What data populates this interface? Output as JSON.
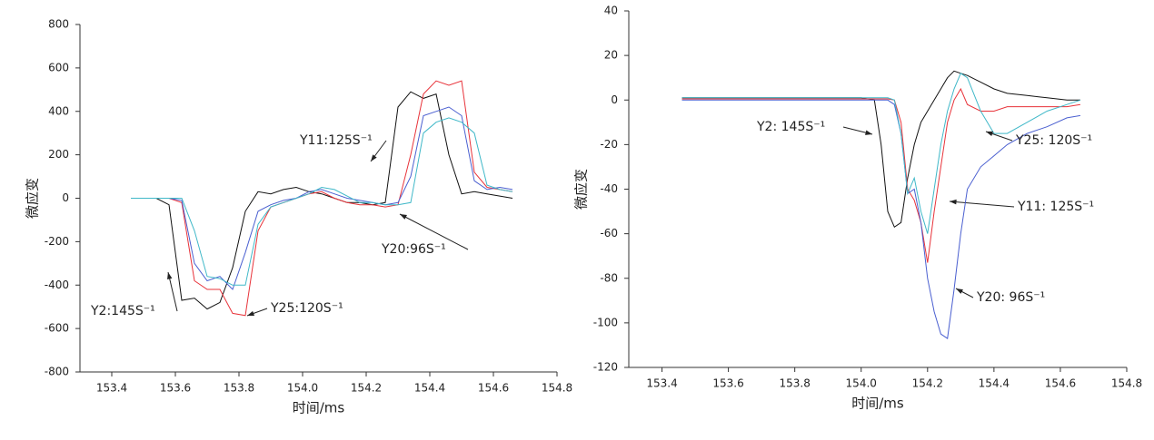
{
  "chart_data": [
    {
      "type": "line",
      "x_label": "时间/ms",
      "y_label": "微应变",
      "xlim": [
        153.3,
        154.8
      ],
      "xticks": [
        153.4,
        153.6,
        153.8,
        {
          "value": 154,
          "label": "154.0"
        },
        154.2,
        154.4,
        154.6,
        154.8
      ],
      "ylim": [
        -800,
        800
      ],
      "yticks": [
        -800,
        -600,
        -400,
        -200,
        0,
        200,
        400,
        600,
        800
      ],
      "x": [
        153.46,
        153.5,
        153.54,
        153.58,
        153.62,
        153.66,
        153.7,
        153.74,
        153.78,
        153.82,
        153.86,
        153.9,
        153.94,
        153.98,
        154.02,
        154.06,
        154.1,
        154.14,
        154.18,
        154.22,
        154.26,
        154.3,
        154.34,
        154.38,
        154.42,
        154.46,
        154.5,
        154.54,
        154.58,
        154.62,
        154.66
      ],
      "series": [
        {
          "name": "Y2:145S⁻¹",
          "color": "#111111",
          "values": [
            0,
            0,
            0,
            -30,
            -470,
            -460,
            -510,
            -480,
            -320,
            -60,
            30,
            20,
            40,
            50,
            30,
            20,
            0,
            -20,
            -20,
            -30,
            -20,
            420,
            490,
            460,
            480,
            200,
            20,
            30,
            20,
            10,
            0
          ]
        },
        {
          "name": "Y25:120S⁻¹",
          "color": "#e8333a",
          "values": [
            0,
            0,
            0,
            0,
            -20,
            -380,
            -420,
            -420,
            -530,
            -540,
            -150,
            -40,
            -20,
            0,
            20,
            30,
            0,
            -20,
            -30,
            -30,
            -40,
            -30,
            200,
            480,
            540,
            520,
            540,
            120,
            50,
            40,
            30
          ]
        },
        {
          "name": "Y11:125S⁻¹",
          "color": "#4a5fd0",
          "values": [
            0,
            0,
            0,
            0,
            -10,
            -300,
            -380,
            -360,
            -420,
            -250,
            -60,
            -30,
            -10,
            0,
            30,
            40,
            20,
            0,
            -10,
            -20,
            -30,
            -20,
            100,
            380,
            400,
            420,
            380,
            80,
            40,
            50,
            40
          ]
        },
        {
          "name": "Y20:96S⁻¹",
          "color": "#3fb8c8",
          "values": [
            0,
            0,
            0,
            0,
            0,
            -150,
            -360,
            -370,
            -400,
            -400,
            -120,
            -40,
            -20,
            0,
            20,
            50,
            40,
            10,
            -20,
            -20,
            -30,
            -30,
            -20,
            300,
            350,
            370,
            350,
            300,
            60,
            40,
            30
          ]
        }
      ]
    },
    {
      "type": "line",
      "x_label": "时间/ms",
      "y_label": "微应变",
      "xlim": [
        153.3,
        154.8
      ],
      "xticks": [
        153.4,
        153.6,
        153.8,
        {
          "value": 154,
          "label": "154.0"
        },
        154.2,
        154.4,
        154.6,
        154.8
      ],
      "ylim": [
        -120,
        40
      ],
      "yticks": [
        -120,
        -100,
        -80,
        -60,
        -40,
        -20,
        0,
        20,
        40
      ],
      "x": [
        153.46,
        153.6,
        153.8,
        154.0,
        154.04,
        154.06,
        154.08,
        154.1,
        154.12,
        154.14,
        154.16,
        154.18,
        154.2,
        154.22,
        154.24,
        154.26,
        154.28,
        154.3,
        154.32,
        154.36,
        154.4,
        154.44,
        154.5,
        154.56,
        154.62,
        154.66
      ],
      "series": [
        {
          "name": "Y2: 145S⁻¹",
          "color": "#111111",
          "values": [
            1,
            1,
            1,
            1,
            0,
            -20,
            -50,
            -57,
            -55,
            -35,
            -20,
            -10,
            -5,
            0,
            5,
            10,
            13,
            12,
            11,
            8,
            5,
            3,
            2,
            1,
            0,
            0
          ]
        },
        {
          "name": "Y11: 125S⁻¹",
          "color": "#e8333a",
          "values": [
            0.5,
            0.5,
            0.5,
            0.5,
            0.5,
            0.5,
            0.5,
            0,
            -10,
            -40,
            -45,
            -55,
            -73,
            -50,
            -30,
            -10,
            0,
            5,
            -2,
            -5,
            -5,
            -3,
            -3,
            -3,
            -3,
            -2
          ]
        },
        {
          "name": "Y20: 96S⁻¹",
          "color": "#4a5fd0",
          "values": [
            0,
            0,
            0,
            0,
            0,
            0,
            0,
            -2,
            -15,
            -42,
            -40,
            -55,
            -80,
            -95,
            -105,
            -107,
            -85,
            -60,
            -40,
            -30,
            -25,
            -20,
            -15,
            -12,
            -8,
            -7
          ]
        },
        {
          "name": "Y25: 120S⁻¹",
          "color": "#3fb8c8",
          "values": [
            1,
            1,
            1,
            1,
            1,
            1,
            1,
            0,
            -15,
            -42,
            -35,
            -50,
            -60,
            -40,
            -20,
            -5,
            5,
            12,
            10,
            -5,
            -15,
            -15,
            -10,
            -5,
            -2,
            0
          ]
        }
      ]
    }
  ]
}
